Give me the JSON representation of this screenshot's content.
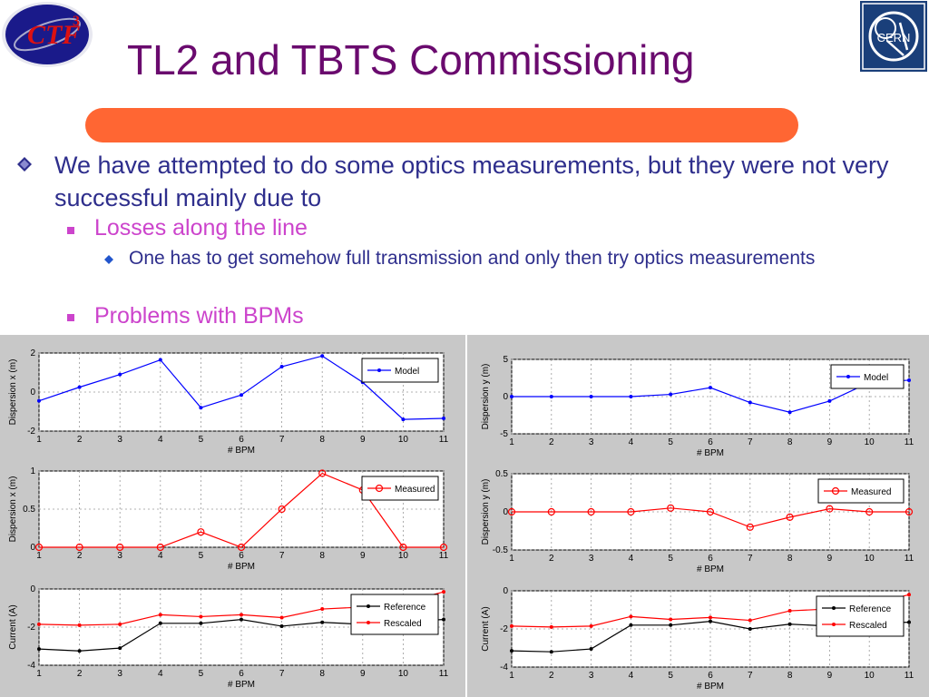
{
  "slide": {
    "title": "TL2 and TBTS Commissioning",
    "logos": {
      "left": "CTF3",
      "right": "CERN"
    },
    "bullets": {
      "main": "We have attempted to do some optics measurements, but they were not very successful mainly due to",
      "sub1": "Losses along the line",
      "sub1_detail": "One has to get somehow full transmission and only then try optics measurements",
      "sub2": "Problems with BPMs"
    }
  },
  "colors": {
    "title": "#6a0a6e",
    "accent_bar": "#ff6633",
    "text_main": "#2e2e8c",
    "text_sub": "#cc44cc",
    "model": "#0000ff",
    "measured": "#ff0000",
    "reference": "#000000",
    "panel_bg": "#c8c8c8"
  },
  "chart_data": [
    {
      "type": "line",
      "xlabel": "# BPM",
      "ylabel": "Dispersion x (m)",
      "x": [
        1,
        2,
        3,
        4,
        5,
        6,
        7,
        8,
        9,
        10,
        11
      ],
      "xlim": [
        1,
        11
      ],
      "ylim": [
        -2,
        2
      ],
      "yticks": [
        -2,
        0,
        2
      ],
      "grid": true,
      "legend_position": "top-right",
      "series": [
        {
          "name": "Model",
          "marker": "dot",
          "color": "#0000ff",
          "values": [
            -0.45,
            0.25,
            0.9,
            1.65,
            -0.8,
            -0.15,
            1.3,
            1.85,
            0.5,
            -1.4,
            -1.35
          ]
        }
      ]
    },
    {
      "type": "line",
      "xlabel": "# BPM",
      "ylabel": "Dispersion y (m)",
      "x": [
        1,
        2,
        3,
        4,
        5,
        6,
        7,
        8,
        9,
        10,
        11
      ],
      "xlim": [
        1,
        11
      ],
      "ylim": [
        -5,
        5
      ],
      "yticks": [
        -5,
        0,
        5
      ],
      "grid": true,
      "legend_position": "top-right",
      "series": [
        {
          "name": "Model",
          "marker": "dot",
          "color": "#0000ff",
          "values": [
            0,
            0,
            0,
            0,
            0.3,
            1.2,
            -0.8,
            -2.1,
            -0.6,
            1.9,
            2.2
          ]
        }
      ]
    },
    {
      "type": "line",
      "xlabel": "# BPM",
      "ylabel": "Dispersion x (m)",
      "x": [
        1,
        2,
        3,
        4,
        5,
        6,
        7,
        8,
        9,
        10,
        11
      ],
      "xlim": [
        1,
        11
      ],
      "ylim": [
        0,
        1
      ],
      "yticks": [
        0,
        0.5,
        1
      ],
      "grid": true,
      "legend_position": "top-right",
      "series": [
        {
          "name": "Measured",
          "marker": "circle",
          "color": "#ff0000",
          "values": [
            0,
            0,
            0,
            0,
            0.2,
            0,
            0.5,
            0.97,
            0.75,
            0,
            0
          ]
        }
      ]
    },
    {
      "type": "line",
      "xlabel": "# BPM",
      "ylabel": "Dispersion y (m)",
      "x": [
        1,
        2,
        3,
        4,
        5,
        6,
        7,
        8,
        9,
        10,
        11
      ],
      "xlim": [
        1,
        11
      ],
      "ylim": [
        -0.5,
        0.5
      ],
      "yticks": [
        -0.5,
        0,
        0.5
      ],
      "grid": true,
      "legend_position": "top-right",
      "series": [
        {
          "name": "Measured",
          "marker": "circle",
          "color": "#ff0000",
          "values": [
            0,
            0,
            0,
            0,
            0.05,
            0,
            -0.2,
            -0.07,
            0.04,
            0,
            0
          ]
        }
      ]
    },
    {
      "type": "line",
      "xlabel": "# BPM",
      "ylabel": "Current (A)",
      "x": [
        1,
        2,
        3,
        4,
        5,
        6,
        7,
        8,
        9,
        10,
        11
      ],
      "xlim": [
        1,
        11
      ],
      "ylim": [
        -4,
        0
      ],
      "yticks": [
        -4,
        -2,
        0
      ],
      "grid": true,
      "legend_position": "top-right",
      "series": [
        {
          "name": "Reference",
          "marker": "dot",
          "color": "#000000",
          "values": [
            -3.15,
            -3.25,
            -3.1,
            -1.8,
            -1.8,
            -1.6,
            -1.95,
            -1.75,
            -1.85,
            -1.7,
            -1.6
          ]
        },
        {
          "name": "Rescaled",
          "marker": "dot",
          "color": "#ff0000",
          "values": [
            -1.85,
            -1.9,
            -1.85,
            -1.35,
            -1.45,
            -1.35,
            -1.5,
            -1.05,
            -0.95,
            -0.7,
            -0.15
          ]
        }
      ]
    },
    {
      "type": "line",
      "xlabel": "# BPM",
      "ylabel": "Current (A)",
      "x": [
        1,
        2,
        3,
        4,
        5,
        6,
        7,
        8,
        9,
        10,
        11
      ],
      "xlim": [
        1,
        11
      ],
      "ylim": [
        -4,
        0
      ],
      "yticks": [
        -4,
        -2,
        0
      ],
      "grid": true,
      "legend_position": "top-right",
      "series": [
        {
          "name": "Reference",
          "marker": "dot",
          "color": "#000000",
          "values": [
            -3.15,
            -3.2,
            -3.05,
            -1.8,
            -1.8,
            -1.6,
            -2.0,
            -1.75,
            -1.85,
            -1.7,
            -1.65
          ]
        },
        {
          "name": "Rescaled",
          "marker": "dot",
          "color": "#ff0000",
          "values": [
            -1.85,
            -1.9,
            -1.85,
            -1.35,
            -1.5,
            -1.4,
            -1.55,
            -1.05,
            -0.95,
            -0.75,
            -0.2
          ]
        }
      ]
    }
  ]
}
